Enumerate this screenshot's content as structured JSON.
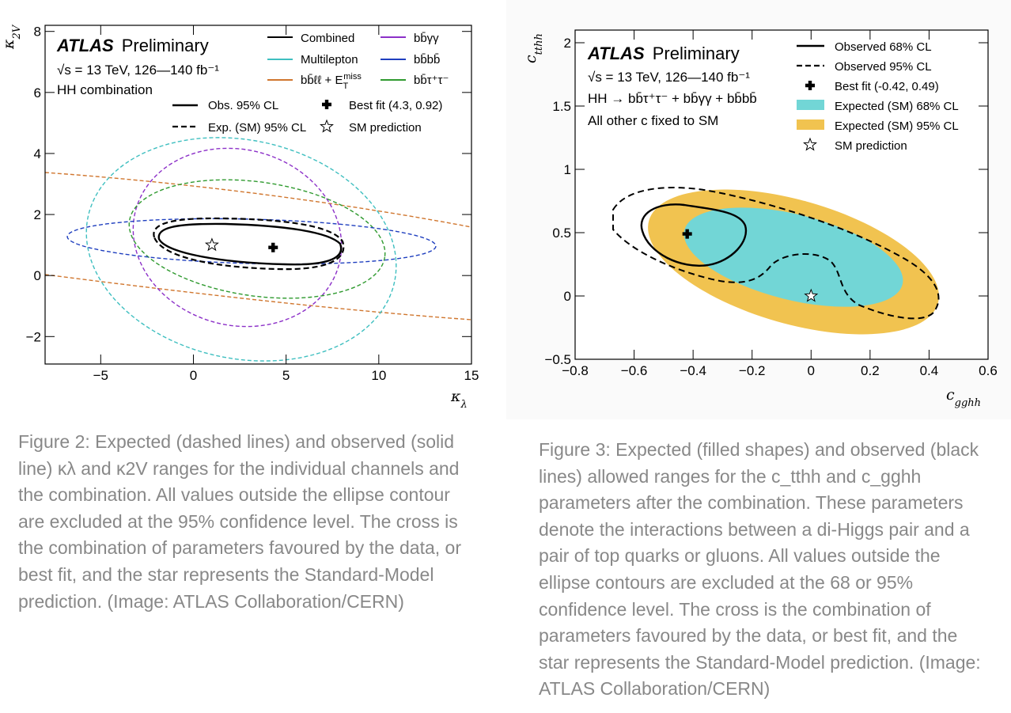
{
  "chart_data": [
    {
      "type": "contour",
      "atlas_label": "ATLAS",
      "preliminary_label": "Preliminary",
      "energy_label": "√s = 13 TeV, 126—140 fb⁻¹",
      "analysis_label": "HH combination",
      "xlabel": "κλ",
      "ylabel": "κ2V",
      "xlim": [
        -8,
        15
      ],
      "ylim": [
        -2.9,
        8.2
      ],
      "xticks": [
        -5,
        0,
        5,
        10,
        15
      ],
      "xtick_labels": [
        "−5",
        "0",
        "5",
        "10",
        "15"
      ],
      "yticks": [
        -2,
        0,
        2,
        4,
        6,
        8
      ],
      "ytick_labels": [
        "−2",
        "0",
        "2",
        "4",
        "6",
        "8"
      ],
      "series": [
        {
          "name": "Combined",
          "color": "#000000",
          "style": "solid",
          "contour_center": [
            3.6,
            0.95
          ],
          "approx_x_range": [
            -1.7,
            8.0
          ],
          "approx_y_range": [
            0.3,
            1.6
          ]
        },
        {
          "name": "Combined",
          "color": "#000000",
          "style": "dashed",
          "contour_center": [
            3.6,
            1.0
          ],
          "approx_x_range": [
            -2.2,
            8.3
          ],
          "approx_y_range": [
            0.2,
            1.8
          ]
        },
        {
          "name": "Multilepton",
          "color": "#3fbfc0",
          "style": "dashed",
          "approx_x_range": [
            -5.4,
            11.0
          ],
          "approx_y_range": [
            -2.8,
            5.1
          ]
        },
        {
          "name": "bb̄ℓℓ + E_T^miss",
          "color": "#d0762e",
          "style": "dashed",
          "approx_x_range": [
            -8,
            15
          ],
          "approx_y_range": [
            -1.5,
            3.4
          ]
        },
        {
          "name": "bb̄γγ",
          "color": "#8c30c8",
          "style": "dashed",
          "approx_x_range": [
            -2.5,
            8.5
          ],
          "approx_y_range": [
            -2.1,
            3.8
          ]
        },
        {
          "name": "bb̄bb̄",
          "color": "#1f3fbf",
          "style": "dashed",
          "approx_x_range": [
            -6.7,
            13.1
          ],
          "approx_y_range": [
            0.2,
            1.9
          ]
        },
        {
          "name": "bb̄τ⁺τ⁻",
          "color": "#2f9a2f",
          "style": "dashed",
          "approx_x_range": [
            -3.2,
            10.4
          ],
          "approx_y_range": [
            -0.8,
            2.7
          ]
        }
      ],
      "points": [
        {
          "name": "Best fit (4.3, 0.92)",
          "marker": "cross",
          "x": 4.3,
          "y": 0.92
        },
        {
          "name": "SM prediction",
          "marker": "star",
          "x": 1,
          "y": 1
        }
      ],
      "legend_lines": [
        {
          "label": "Combined",
          "color": "#000000",
          "style": "solid"
        },
        {
          "label": "Multilepton",
          "color": "#3fbfc0",
          "style": "solid"
        },
        {
          "label": "bb̄ℓℓ + E",
          "color": "#d0762e",
          "style": "solid"
        },
        {
          "label": "bb̄γγ",
          "color": "#8c30c8",
          "style": "solid"
        },
        {
          "label": "bb̄bb̄",
          "color": "#1f3fbf",
          "style": "solid"
        },
        {
          "label": "bb̄τ⁺τ⁻",
          "color": "#2f9a2f",
          "style": "solid"
        }
      ],
      "legend_styles": [
        {
          "label": "Obs. 95% CL",
          "style": "solid"
        },
        {
          "label": "Exp. (SM) 95% CL",
          "style": "dashed"
        },
        {
          "label": "Best fit (4.3, 0.92)",
          "marker": "cross"
        },
        {
          "label": "SM prediction",
          "marker": "star"
        }
      ],
      "legend_placement": "top-right"
    },
    {
      "type": "contour",
      "atlas_label": "ATLAS",
      "preliminary_label": "Preliminary",
      "energy_label": "√s = 13 TeV, 126—140 fb⁻¹",
      "process_label": "HH → bb̄τ⁺τ⁻ + bb̄γγ + bb̄bb̄",
      "fixed_label": "All other c fixed to SM",
      "xlabel": "c_gghh",
      "ylabel": "c_tthh",
      "xlim": [
        -0.8,
        0.6
      ],
      "ylim": [
        -0.5,
        2.1
      ],
      "xticks": [
        -0.8,
        -0.6,
        -0.4,
        -0.2,
        0,
        0.2,
        0.4,
        0.6
      ],
      "xtick_labels": [
        "−0.8",
        "−0.6",
        "−0.4",
        "−0.2",
        "0",
        "0.2",
        "0.4",
        "0.6"
      ],
      "yticks": [
        -0.5,
        0,
        0.5,
        1,
        1.5,
        2
      ],
      "ytick_labels": [
        "−0.5",
        "0",
        "0.5",
        "1",
        "1.5",
        "2"
      ],
      "series": [
        {
          "name": "Observed 68% CL",
          "color": "#000000",
          "style": "solid",
          "approx_x_range": [
            -0.57,
            -0.22
          ],
          "approx_y_range": [
            0.24,
            0.71
          ]
        },
        {
          "name": "Observed 95% CL",
          "color": "#000000",
          "style": "dashed",
          "approx_x_range": [
            -0.68,
            0.43
          ],
          "approx_y_range": [
            -0.19,
            0.84
          ]
        },
        {
          "name": "Expected (SM) 68% CL",
          "color": "#72d6d6",
          "style": "fill",
          "approx_x_range": [
            -0.44,
            0.31
          ],
          "approx_y_range": [
            -0.1,
            0.66
          ]
        },
        {
          "name": "Expected (SM) 95% CL",
          "color": "#f1c350",
          "style": "fill",
          "approx_x_range": [
            -0.55,
            0.43
          ],
          "approx_y_range": [
            -0.28,
            0.8
          ]
        }
      ],
      "points": [
        {
          "name": "Best fit (-0.42, 0.49)",
          "marker": "cross",
          "x": -0.42,
          "y": 0.49
        },
        {
          "name": "SM prediction",
          "marker": "star",
          "x": 0,
          "y": 0
        }
      ],
      "legend": [
        {
          "label": "Observed 68% CL",
          "type": "solid"
        },
        {
          "label": "Observed 95% CL",
          "type": "dashed"
        },
        {
          "label": "Best fit (-0.42, 0.49)",
          "type": "cross"
        },
        {
          "label": "Expected (SM) 68% CL",
          "type": "fill",
          "color": "#72d6d6"
        },
        {
          "label": "Expected (SM) 95% CL",
          "type": "fill",
          "color": "#f1c350"
        },
        {
          "label": "SM prediction",
          "type": "star"
        }
      ],
      "legend_placement": "top-right"
    }
  ],
  "captions": {
    "fig2": "Figure 2: Expected (dashed lines) and observed (solid line) κλ and κ2V ranges for the individual channels and the combination. All values outside the ellipse contour are excluded at the 95% confidence level. The cross is the combination of parameters favoured by the data, or best fit, and the star represents the Standard-Model prediction. (Image: ATLAS Collaboration/CERN)",
    "fig3": "Figure 3: Expected (filled shapes) and observed (black lines) allowed ranges for the c_tthh and c_gghh parameters after the combination. These parameters denote the interactions between a di-Higgs pair and a pair of top quarks or gluons. All values outside the ellipse contours are excluded at the 68 or 95% confidence level. The cross is the combination of parameters favoured by the data, or best fit, and the star represents the Standard-Model prediction. (Image: ATLAS Collaboration/CERN)"
  }
}
